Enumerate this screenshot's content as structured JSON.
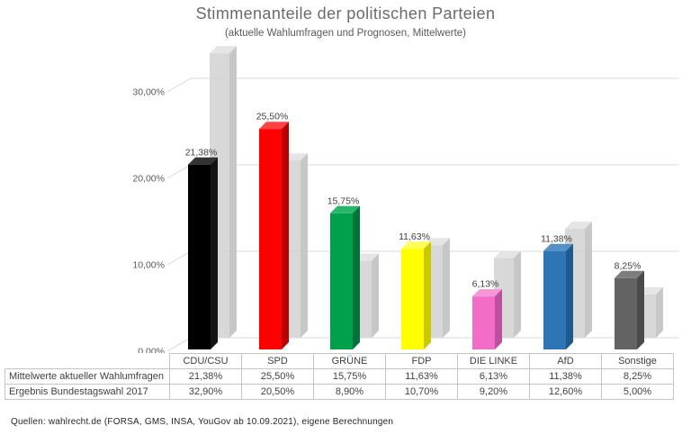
{
  "title": "Stimmenanteile der politischen Parteien",
  "subtitle": "(aktuelle Wahlumfragen und Prognosen, Mittelwerte)",
  "source_note": "Quellen:  wahlrecht.de (FORSA, GMS, INSA, YouGov ab 10.09.2021), eigene Berechnungen",
  "chart_data": {
    "type": "bar",
    "style": "3d-clustered",
    "grid": true,
    "legend_position": "table-below",
    "categories": [
      "CDU/CSU",
      "SPD",
      "GRÜNE",
      "FDP",
      "DIE LINKE",
      "AfD",
      "Sonstige"
    ],
    "y_ticks": [
      "0,00%",
      "10,00%",
      "20,00%",
      "30,00%"
    ],
    "y_tick_values": [
      0,
      10,
      20,
      30
    ],
    "ylim": [
      0,
      35
    ],
    "series": [
      {
        "name": "Mittelwerte aktueller Wahlumfragen",
        "values": [
          21.38,
          25.5,
          15.75,
          11.63,
          6.13,
          11.38,
          8.25
        ],
        "labels": [
          "21,38%",
          "25,50%",
          "15,75%",
          "11,63%",
          "6,13%",
          "11,38%",
          "8,25%"
        ],
        "colors": [
          {
            "front": "#000000",
            "top": "#333333",
            "side": "#141414"
          },
          {
            "front": "#fe0000",
            "top": "#ff4242",
            "side": "#b80000"
          },
          {
            "front": "#00a14d",
            "top": "#2bb46b",
            "side": "#007438"
          },
          {
            "front": "#ffff00",
            "top": "#ffff55",
            "side": "#c9c900"
          },
          {
            "front": "#f16dc7",
            "top": "#f696d8",
            "side": "#bd4f9e"
          },
          {
            "front": "#2e75b6",
            "top": "#5590c6",
            "side": "#1f5a8e"
          },
          {
            "front": "#636363",
            "top": "#7d7d7d",
            "side": "#4a4a4a"
          }
        ]
      },
      {
        "name": "Ergebnis Bundestagswahl 2017",
        "values": [
          32.9,
          20.5,
          8.9,
          10.7,
          9.2,
          12.6,
          5.0
        ],
        "labels": [
          "32,90%",
          "20,50%",
          "8,90%",
          "10,70%",
          "9,20%",
          "12,60%",
          "5,00%"
        ],
        "color": {
          "front": "#d5d5d5",
          "top": "#e3e3e3",
          "side": "#c2c2c2"
        }
      }
    ],
    "colors_legend": {
      "grid": "#d9d9d9",
      "data_label": "#404040",
      "axis_label": "#595959"
    }
  }
}
